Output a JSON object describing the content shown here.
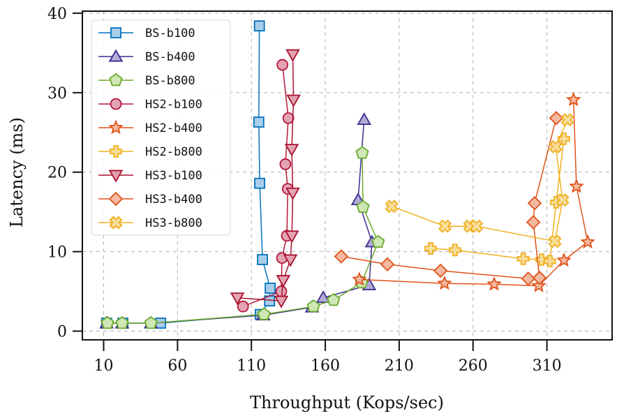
{
  "chart_data": {
    "type": "line",
    "title": "",
    "xlabel": "Throughput (Kops/sec)",
    "ylabel": "Latency (ms)",
    "xlim": [
      3.6,
      362
    ],
    "ylim": [
      -1,
      40.3
    ],
    "xticks": [
      10,
      60,
      110,
      160,
      210,
      260,
      310
    ],
    "yticks": [
      0,
      10,
      20,
      30,
      40
    ],
    "grid": true,
    "legend_position": "top-left",
    "series": [
      {
        "name": "BS-b100",
        "color": "#0072bd",
        "fill": "#a9cdea",
        "marker": "square",
        "x": [
          12,
          23,
          48.5,
          116,
          122.3,
          122.7,
          117.5,
          115.6,
          115,
          115.4
        ],
        "y": [
          1.0,
          1.0,
          1.0,
          2.1,
          3.8,
          5.4,
          9.0,
          18.6,
          26.3,
          38.4
        ]
      },
      {
        "name": "BS-b400",
        "color": "#3a2c8f",
        "fill": "#b2acd6",
        "marker": "triangle-up",
        "x": [
          12,
          22.5,
          42,
          118,
          151,
          158.6,
          189.7,
          191.6,
          182.2,
          186.3
        ],
        "y": [
          1.0,
          1.0,
          1.0,
          2.0,
          3.0,
          4.2,
          5.8,
          11.2,
          16.5,
          26.6
        ]
      },
      {
        "name": "BS-b800",
        "color": "#6aaa2a",
        "fill": "#cfe6b5",
        "marker": "pentagon",
        "x": [
          12.6,
          22.5,
          42,
          118.5,
          152,
          165.6,
          184.6,
          195.8,
          185.5,
          185
        ],
        "y": [
          1.0,
          1.0,
          1.0,
          2.1,
          3.1,
          3.9,
          6.1,
          11.2,
          15.6,
          22.4
        ]
      },
      {
        "name": "HS2-b100",
        "color": "#b5173b",
        "fill": "#e3a3b3",
        "marker": "circle",
        "x": [
          104.3,
          130.2,
          130.7,
          134,
          134.6,
          133,
          135,
          131
        ],
        "y": [
          3.1,
          5.0,
          9.2,
          12.0,
          17.9,
          21.0,
          26.8,
          33.5
        ]
      },
      {
        "name": "HS2-b400",
        "color": "#e0521a",
        "fill": "#f4b9a0",
        "marker": "star",
        "x": [
          183,
          240.7,
          274.3,
          304.5,
          321.5,
          337.6,
          330,
          328
        ],
        "y": [
          6.5,
          6.0,
          5.9,
          5.7,
          8.9,
          11.2,
          18.2,
          29.1
        ]
      },
      {
        "name": "HS2-b800",
        "color": "#f0b020",
        "fill": "#f8dc98",
        "marker": "plus",
        "x": [
          231.3,
          247.8,
          294,
          306.4,
          312,
          316.3,
          321.5
        ],
        "y": [
          10.4,
          10.2,
          9.1,
          9.0,
          8.8,
          16.2,
          24.2
        ]
      },
      {
        "name": "HS3-b100",
        "color": "#a8102e",
        "fill": "#e3a3b3",
        "marker": "triangle-down",
        "x": [
          100.5,
          130.2,
          131.6,
          136.4,
          137.4,
          138,
          137.3,
          138.5,
          138
        ],
        "y": [
          4.2,
          3.8,
          6.4,
          9.0,
          12.0,
          17.4,
          22.9,
          29.1,
          34.8
        ]
      },
      {
        "name": "HS3-b400",
        "color": "#e0521a",
        "fill": "#f4b9a0",
        "marker": "diamond",
        "x": [
          170.8,
          202,
          238,
          297.4,
          305,
          300.8,
          301.7,
          316.3
        ],
        "y": [
          9.4,
          8.4,
          7.6,
          6.6,
          6.7,
          13.7,
          16.1,
          26.8
        ]
      },
      {
        "name": "HS3-b800",
        "color": "#f0b020",
        "fill": "#f8dc98",
        "marker": "x",
        "x": [
          204.9,
          241,
          257.8,
          262.3,
          315.4,
          320.6,
          315.9,
          323.9
        ],
        "y": [
          15.7,
          13.2,
          13.2,
          13.2,
          11.3,
          16.5,
          23.2,
          26.6
        ]
      }
    ]
  }
}
